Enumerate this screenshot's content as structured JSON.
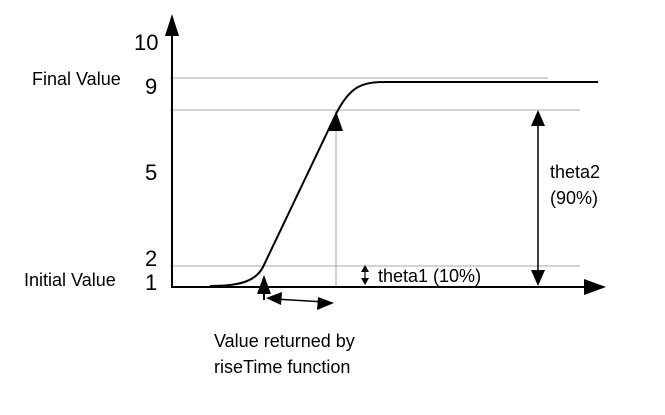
{
  "y_axis": {
    "ticks": [
      "10",
      "9",
      "5",
      "2",
      "1"
    ]
  },
  "labels": {
    "final_value": "Final Value",
    "initial_value": "Initial Value",
    "theta1": "theta1 (10%)",
    "theta2_line1": "theta2",
    "theta2_line2": "(90%)",
    "caption_line1": "Value returned by",
    "caption_line2": "riseTime function"
  },
  "colors": {
    "stroke": "#000000",
    "guide": "#aaaaaa"
  }
}
